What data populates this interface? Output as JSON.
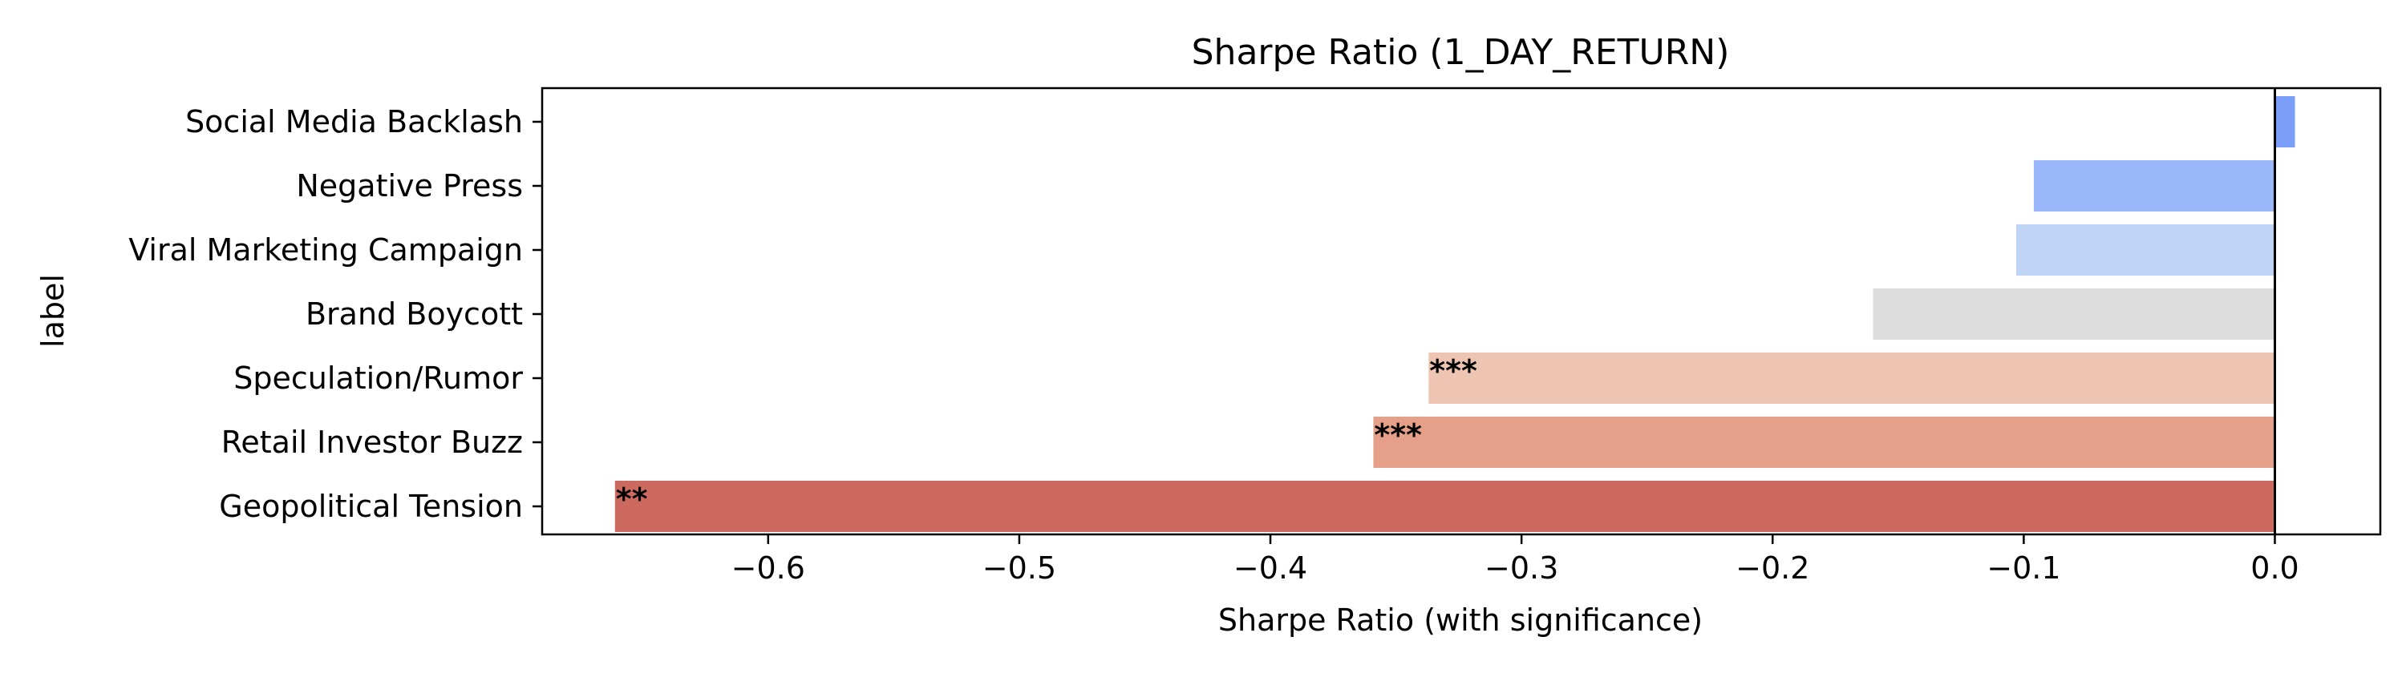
{
  "chart_data": {
    "type": "bar",
    "orientation": "horizontal",
    "title": "Sharpe Ratio (1_DAY_RETURN)",
    "xlabel": "Sharpe Ratio (with significance)",
    "ylabel": "label",
    "xlim": [
      -0.69,
      0.042
    ],
    "xticks": [
      -0.6,
      -0.5,
      -0.4,
      -0.3,
      -0.2,
      -0.1,
      0.0
    ],
    "xtick_labels": [
      "−0.6",
      "−0.5",
      "−0.4",
      "−0.3",
      "−0.2",
      "−0.1",
      "0.0"
    ],
    "grid": false,
    "legend": null,
    "reference_line": 0.0,
    "bars": [
      {
        "label": "Social Media Backlash",
        "value": 0.008,
        "significance": "",
        "color": "#7b9ff9"
      },
      {
        "label": "Negative Press",
        "value": -0.096,
        "significance": "",
        "color": "#9ab8f9"
      },
      {
        "label": "Viral Marketing Campaign",
        "value": -0.103,
        "significance": "",
        "color": "#c0d4f5"
      },
      {
        "label": "Brand Boycott",
        "value": -0.16,
        "significance": "",
        "color": "#dddcdc"
      },
      {
        "label": "Speculation/Rumor",
        "value": -0.337,
        "significance": "***",
        "color": "#eec4b2"
      },
      {
        "label": "Retail Investor Buzz",
        "value": -0.359,
        "significance": "***",
        "color": "#e4a088"
      },
      {
        "label": "Geopolitical Tension",
        "value": -0.661,
        "significance": "**",
        "color": "#cc6a60"
      }
    ]
  }
}
